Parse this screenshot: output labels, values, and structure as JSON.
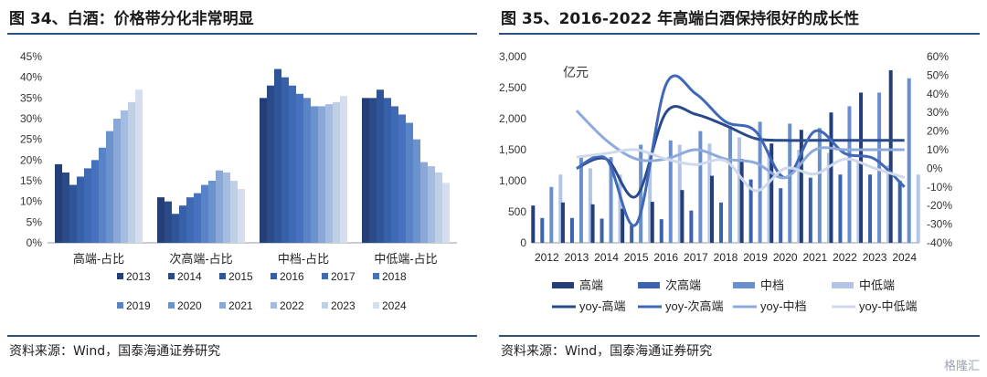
{
  "watermark": "格隆汇",
  "left": {
    "title": "图 34、白酒：价格带分化非常明显",
    "source": "资料来源：Wind，国泰海通证券研究",
    "chart_data": {
      "type": "bar",
      "categories": [
        "高端-占比",
        "次高端-占比",
        "中档-占比",
        "中低端-占比"
      ],
      "y_ticks": [
        "0%",
        "5%",
        "10%",
        "15%",
        "20%",
        "25%",
        "30%",
        "35%",
        "40%",
        "45%"
      ],
      "ylim": [
        0,
        45
      ],
      "legend_position": "bottom",
      "series": [
        {
          "name": "2013",
          "color": "#243e78",
          "values": [
            19,
            11,
            35,
            35
          ]
        },
        {
          "name": "2014",
          "color": "#2a4a88",
          "values": [
            17,
            10,
            38,
            35
          ]
        },
        {
          "name": "2015",
          "color": "#2f5599",
          "values": [
            14,
            7,
            42,
            37
          ]
        },
        {
          "name": "2016",
          "color": "#3760a8",
          "values": [
            16,
            9,
            40,
            35
          ]
        },
        {
          "name": "2017",
          "color": "#3e6ab3",
          "values": [
            18,
            11,
            38,
            33
          ]
        },
        {
          "name": "2018",
          "color": "#4672bd",
          "values": [
            20,
            12,
            36,
            31
          ]
        },
        {
          "name": "2019",
          "color": "#5883c6",
          "values": [
            23,
            14,
            35,
            29
          ]
        },
        {
          "name": "2020",
          "color": "#6a92cd",
          "values": [
            27,
            15,
            33,
            25
          ]
        },
        {
          "name": "2021",
          "color": "#8aa8d7",
          "values": [
            30,
            17.5,
            33,
            19.5
          ]
        },
        {
          "name": "2022",
          "color": "#a5bce1",
          "values": [
            32,
            17,
            33.5,
            18.5
          ]
        },
        {
          "name": "2023",
          "color": "#bfcfe8",
          "values": [
            34,
            15,
            34,
            17
          ]
        },
        {
          "name": "2024",
          "color": "#d4deef",
          "values": [
            37,
            13,
            35.5,
            14.5
          ]
        }
      ]
    }
  },
  "right": {
    "title": "图 35、2016-2022 年高端白酒保持很好的成长性",
    "source": "资料来源：Wind，国泰海通证券研究",
    "chart_data": {
      "type": "bar+line",
      "unit_label": "亿元",
      "x": [
        "2012",
        "2013",
        "2014",
        "2015",
        "2016",
        "2017",
        "2018",
        "2019",
        "2020",
        "2021",
        "2022",
        "2023",
        "2024"
      ],
      "y_left_ticks": [
        "0",
        "500",
        "1,000",
        "1,500",
        "2,000",
        "2,500",
        "3,000"
      ],
      "y_left_lim": [
        0,
        3000
      ],
      "y_right_ticks": [
        "-40%",
        "-30%",
        "-20%",
        "-10%",
        "0%",
        "10%",
        "20%",
        "30%",
        "40%",
        "50%",
        "60%"
      ],
      "y_right_lim": [
        -40,
        60
      ],
      "legend_position": "bottom",
      "bar_series": [
        {
          "name": "高端",
          "color": "#243e78",
          "values": [
            600,
            650,
            620,
            550,
            660,
            850,
            1080,
            1350,
            1600,
            1820,
            2100,
            2420,
            2780
          ]
        },
        {
          "name": "次高端",
          "color": "#3b63ad",
          "values": [
            400,
            400,
            390,
            280,
            380,
            520,
            650,
            1020,
            880,
            1050,
            1100,
            1100,
            1000
          ]
        },
        {
          "name": "中档",
          "color": "#6a8fcf",
          "values": [
            900,
            1400,
            1380,
            1580,
            1650,
            1800,
            1880,
            1950,
            1920,
            1850,
            2200,
            2420,
            2650
          ]
        },
        {
          "name": "中低端",
          "color": "#b3c5e6",
          "values": [
            1100,
            1200,
            1100,
            1450,
            1580,
            1600,
            1700,
            1500,
            1500,
            1450,
            1300,
            1250,
            1100
          ]
        }
      ],
      "line_series": [
        {
          "name": "yoy-高端",
          "color": "#2a4a8c",
          "values": [
            null,
            0,
            5,
            -15,
            30,
            29,
            23,
            16,
            15,
            15,
            15,
            15,
            15
          ]
        },
        {
          "name": "yoy-次高端",
          "color": "#3f68b8",
          "values": [
            null,
            0,
            5,
            -30,
            45,
            40,
            25,
            20,
            -5,
            20,
            8,
            5,
            -10
          ]
        },
        {
          "name": "yoy-中档",
          "color": "#8ea9dc",
          "values": [
            null,
            31,
            15,
            5,
            5,
            10,
            5,
            3,
            -5,
            10,
            10,
            10,
            10
          ]
        },
        {
          "name": "yoy-中低端",
          "color": "#cfd9ec",
          "values": [
            null,
            6,
            8,
            10,
            5,
            2,
            4,
            -12,
            0,
            -3,
            5,
            0,
            -5
          ]
        }
      ]
    }
  }
}
